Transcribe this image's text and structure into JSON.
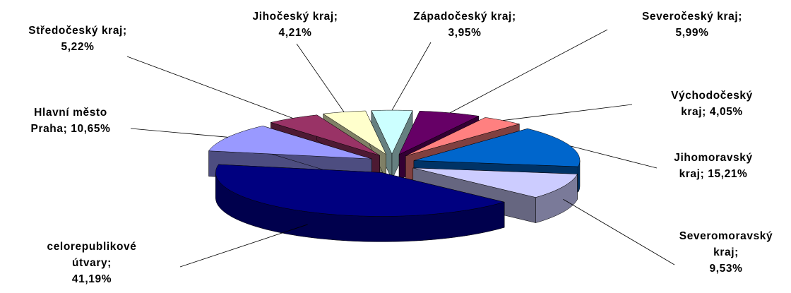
{
  "chart_data": {
    "type": "pie",
    "categories": [
      "Západočeský kraj",
      "Severočeský kraj",
      "Východočeský kraj",
      "Jihomoravský kraj",
      "Severomoravský kraj",
      "celorepublikové útvary",
      "Hlavní město Praha",
      "Středočeský kraj",
      "Jihočeský kraj"
    ],
    "values": [
      3.95,
      5.99,
      4.05,
      15.21,
      9.53,
      41.19,
      10.65,
      5.22,
      4.21
    ],
    "value_labels": [
      "3,95%",
      "5,99%",
      "4,05%",
      "15,21%",
      "9,53%",
      "41,19%",
      "10,65%",
      "5,22%",
      "4,21%"
    ],
    "label_separator": ";",
    "colors": [
      "#ccffff",
      "#660066",
      "#ff8080",
      "#0066cc",
      "#ccccff",
      "#000080",
      "#9999ff",
      "#993366",
      "#ffffcc"
    ]
  }
}
